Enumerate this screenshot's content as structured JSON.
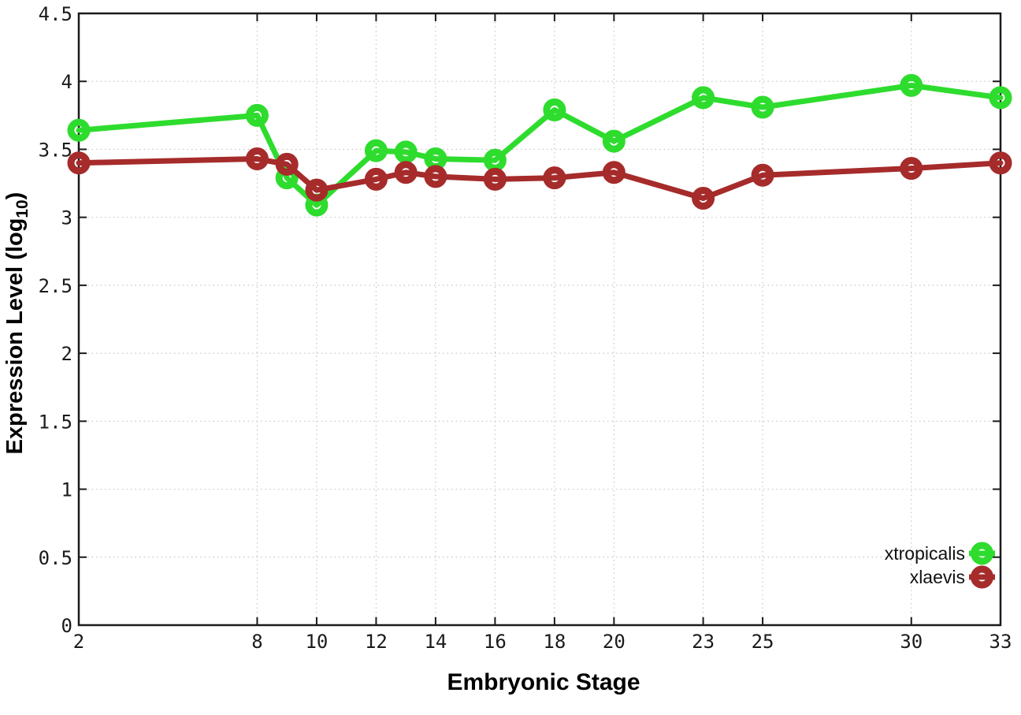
{
  "chart_data": {
    "type": "line",
    "title": "",
    "xlabel": "Embryonic Stage",
    "ylabel_prefix": "Expression Level (log",
    "ylabel_sub": "10",
    "ylabel_suffix": ")",
    "x": [
      2,
      8,
      9,
      10,
      12,
      13,
      14,
      16,
      18,
      20,
      23,
      25,
      30,
      33
    ],
    "series": [
      {
        "name": "xtropicalis",
        "color": "#2edc2e",
        "values": [
          3.64,
          3.75,
          3.29,
          3.09,
          3.49,
          3.48,
          3.43,
          3.42,
          3.79,
          3.56,
          3.88,
          3.81,
          3.97,
          3.88
        ]
      },
      {
        "name": "xlaevis",
        "color": "#a62b2b",
        "values": [
          3.4,
          3.43,
          3.39,
          3.2,
          3.28,
          3.33,
          3.3,
          3.28,
          3.29,
          3.33,
          3.14,
          3.31,
          3.36,
          3.4
        ]
      }
    ],
    "x_ticks": [
      2,
      8,
      10,
      12,
      14,
      16,
      18,
      20,
      23,
      25,
      30,
      33
    ],
    "y_ticks": [
      0,
      0.5,
      1,
      1.5,
      2,
      2.5,
      3,
      3.5,
      4,
      4.5
    ],
    "xlim": [
      2,
      33
    ],
    "ylim": [
      0,
      4.5
    ],
    "grid": true,
    "legend_position": "inside-bottom-right",
    "colors": {
      "border": "#1a1a1a",
      "grid": "#c6c6c6",
      "tick_text": "#1a1a1a",
      "background": "#ffffff"
    }
  }
}
